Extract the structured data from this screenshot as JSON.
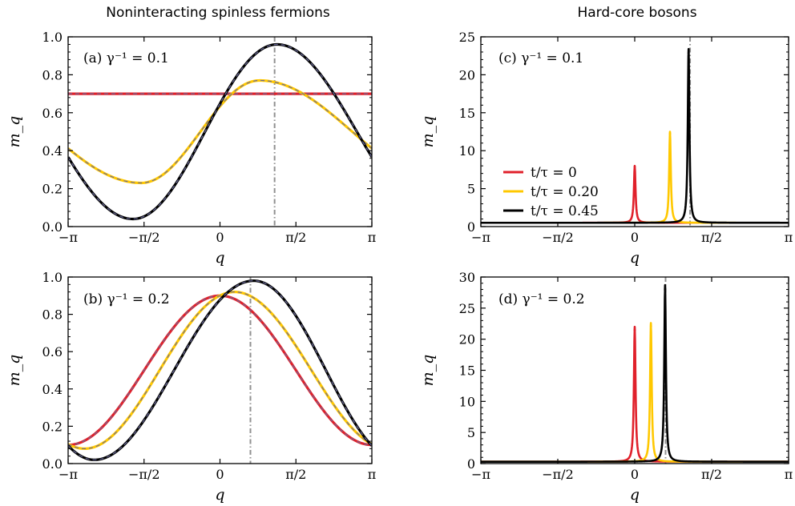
{
  "headings": {
    "left": "Noninteracting spinless fermions",
    "right": "Hard-core bosons"
  },
  "colors": {
    "red": "#e0212b",
    "yellow": "#ffc800",
    "black": "#000000",
    "dash": "#6a6a9a",
    "vline": "#909090"
  },
  "legend": [
    {
      "label": "t/τ = 0",
      "color": "#e0212b"
    },
    {
      "label": "t/τ = 0.20",
      "color": "#ffc800"
    },
    {
      "label": "t/τ = 0.45",
      "color": "#000000"
    }
  ],
  "chart_data": [
    {
      "id": "a",
      "type": "line",
      "label": "(a) γ⁻¹ = 0.1",
      "xlabel": "q",
      "ylabel": "m_q",
      "xlim": [
        -3.1416,
        3.1416
      ],
      "ylim": [
        0,
        1.0
      ],
      "xticks": [
        "−π",
        "−π/2",
        "0",
        "π/2",
        "π"
      ],
      "yticks": [
        "0.0",
        "0.2",
        "0.4",
        "0.6",
        "0.8",
        "1.0"
      ],
      "vline_x": 1.13,
      "series": [
        {
          "color": "red",
          "min": [
            -1.7,
            0.7
          ],
          "max": [
            0.0,
            0.7
          ],
          "dashed": true
        },
        {
          "color": "yellow",
          "min": [
            -1.63,
            0.23
          ],
          "max": [
            0.82,
            0.77
          ],
          "dashed": true
        },
        {
          "color": "black",
          "min": [
            -1.8,
            0.04
          ],
          "max": [
            1.18,
            0.96
          ],
          "dashed": true
        }
      ]
    },
    {
      "id": "b",
      "type": "line",
      "label": "(b) γ⁻¹ = 0.2",
      "xlabel": "q",
      "ylabel": "m_q",
      "xlim": [
        -3.1416,
        3.1416
      ],
      "ylim": [
        0,
        1.0
      ],
      "xticks": [
        "−π",
        "−π/2",
        "0",
        "π/2",
        "π"
      ],
      "yticks": [
        "0.0",
        "0.2",
        "0.4",
        "0.6",
        "0.8",
        "1.0"
      ],
      "vline_x": 0.63,
      "series": [
        {
          "color": "red",
          "min": [
            -3.14,
            0.1
          ],
          "max": [
            0.0,
            0.9
          ],
          "dashed": true
        },
        {
          "color": "yellow",
          "min": [
            -2.8,
            0.08
          ],
          "max": [
            0.3,
            0.92
          ],
          "dashed": true
        },
        {
          "color": "black",
          "min": [
            -2.6,
            0.02
          ],
          "max": [
            0.7,
            0.98
          ],
          "dashed": true
        }
      ]
    },
    {
      "id": "c",
      "type": "line",
      "label": "(c) γ⁻¹ = 0.1",
      "xlabel": "q",
      "ylabel": "m_q",
      "xlim": [
        -3.1416,
        3.1416
      ],
      "ylim": [
        0,
        25
      ],
      "xticks": [
        "−π",
        "−π/2",
        "0",
        "π/2",
        "π"
      ],
      "yticks": [
        "0",
        "5",
        "10",
        "15",
        "20",
        "25"
      ],
      "vline_x": 1.13,
      "baseline": 0.5,
      "peak_width": 0.02,
      "series": [
        {
          "color": "red",
          "peak_x": 0.0,
          "peak_y": 8.0
        },
        {
          "color": "yellow",
          "peak_x": 0.72,
          "peak_y": 12.5
        },
        {
          "color": "black",
          "peak_x": 1.1,
          "peak_y": 23.4
        }
      ],
      "legend": true
    },
    {
      "id": "d",
      "type": "line",
      "label": "(d) γ⁻¹ = 0.2",
      "xlabel": "q",
      "ylabel": "m_q",
      "xlim": [
        -3.1416,
        3.1416
      ],
      "ylim": [
        0,
        30
      ],
      "xticks": [
        "−π",
        "−π/2",
        "0",
        "π/2",
        "π"
      ],
      "yticks": [
        "0",
        "5",
        "10",
        "15",
        "20",
        "25",
        "30"
      ],
      "vline_x": 0.63,
      "baseline": 0.3,
      "peak_width": 0.02,
      "series": [
        {
          "color": "red",
          "peak_x": 0.0,
          "peak_y": 22.0
        },
        {
          "color": "yellow",
          "peak_x": 0.33,
          "peak_y": 22.6
        },
        {
          "color": "black",
          "peak_x": 0.62,
          "peak_y": 28.7
        }
      ]
    }
  ]
}
